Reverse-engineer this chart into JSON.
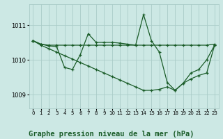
{
  "background_color": "#cce8e4",
  "grid_color": "#aaccc8",
  "line_color": "#1a5c28",
  "line_width": 0.9,
  "marker_size": 3.5,
  "title": "Graphe pression niveau de la mer (hPa)",
  "title_fontsize": 7.5,
  "xlim": [
    -0.5,
    23.5
  ],
  "ylim": [
    1008.6,
    1011.6
  ],
  "yticks": [
    1009,
    1010,
    1011
  ],
  "xticks": [
    0,
    1,
    2,
    3,
    4,
    5,
    6,
    7,
    8,
    9,
    10,
    11,
    12,
    13,
    14,
    15,
    16,
    17,
    18,
    19,
    20,
    21,
    22,
    23
  ],
  "line1_x": [
    0,
    1,
    2,
    3,
    4,
    5,
    6,
    7,
    8,
    9,
    10,
    11,
    12,
    13,
    14,
    15,
    16,
    17,
    18,
    19,
    20,
    21,
    22,
    23
  ],
  "line1_y": [
    1010.55,
    1010.45,
    1010.42,
    1010.42,
    1010.42,
    1010.42,
    1010.42,
    1010.42,
    1010.42,
    1010.42,
    1010.42,
    1010.42,
    1010.42,
    1010.42,
    1010.42,
    1010.42,
    1010.42,
    1010.42,
    1010.42,
    1010.42,
    1010.42,
    1010.42,
    1010.42,
    1010.45
  ],
  "line2_x": [
    0,
    1,
    2,
    3,
    4,
    5,
    6,
    7,
    8,
    9,
    10,
    11,
    12,
    13,
    14,
    15,
    16,
    17,
    18,
    19,
    20,
    21,
    22,
    23
  ],
  "line2_y": [
    1010.55,
    1010.45,
    1010.4,
    1010.38,
    1009.78,
    1009.72,
    1010.15,
    1010.75,
    1010.5,
    1010.5,
    1010.5,
    1010.48,
    1010.45,
    1010.42,
    1011.3,
    1010.55,
    1010.22,
    1009.35,
    1009.12,
    1009.32,
    1009.62,
    1009.72,
    1010.0,
    1010.42
  ],
  "line3_x": [
    0,
    1,
    2,
    3,
    4,
    5,
    6,
    7,
    8,
    9,
    10,
    11,
    12,
    13,
    14,
    15,
    16,
    17,
    18,
    19,
    20,
    21,
    22,
    23
  ],
  "line3_y": [
    1010.55,
    1010.42,
    1010.32,
    1010.22,
    1010.12,
    1010.02,
    1009.92,
    1009.82,
    1009.72,
    1009.62,
    1009.52,
    1009.42,
    1009.32,
    1009.22,
    1009.12,
    1009.12,
    1009.15,
    1009.22,
    1009.12,
    1009.32,
    1009.45,
    1009.55,
    1009.62,
    1010.42
  ]
}
